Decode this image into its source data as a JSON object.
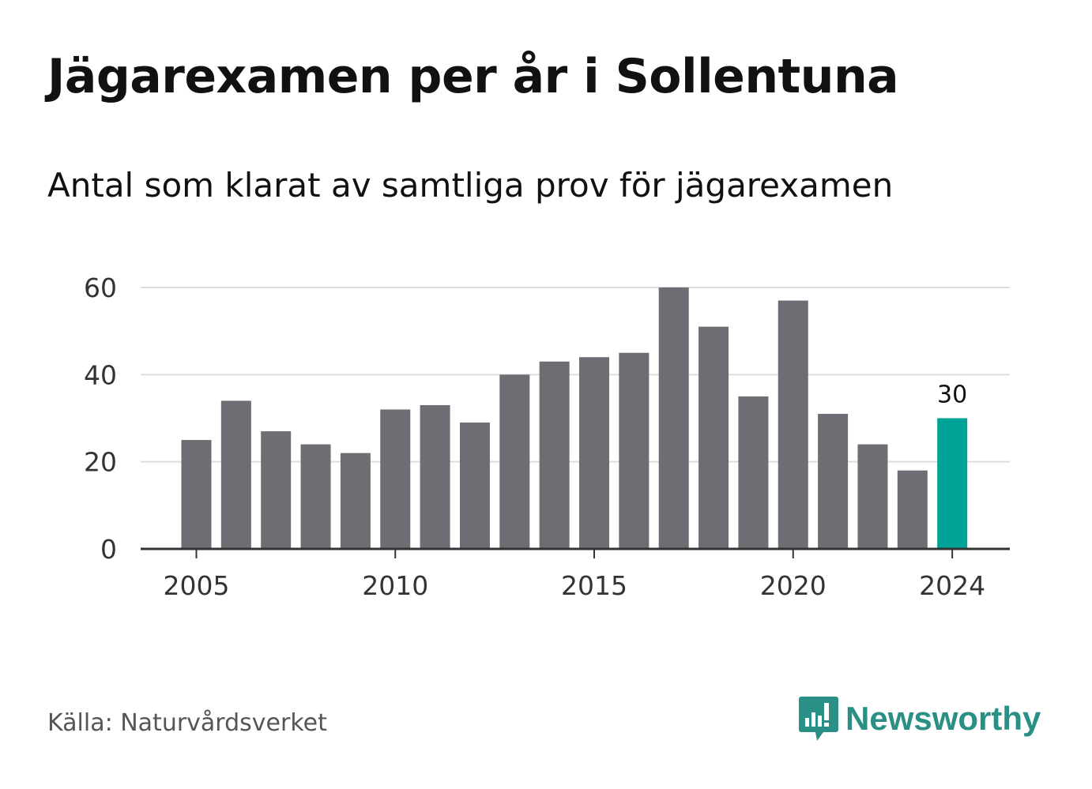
{
  "header": {
    "title": "Jägarexamen per år i Sollentuna",
    "subtitle": "Antal som klarat av samtliga prov för jägarexamen"
  },
  "footer": {
    "source": "Källa: Naturvårdsverket",
    "brand": "Newsworthy",
    "brand_icon": "bar-chart-speech-bubble-icon"
  },
  "colors": {
    "bar": "#6e6d73",
    "highlight": "#00a398",
    "grid": "#dddddd",
    "axis": "#333333",
    "brand": "#2a8f84"
  },
  "chart_data": {
    "type": "bar",
    "x": [
      2005,
      2006,
      2007,
      2008,
      2009,
      2010,
      2011,
      2012,
      2013,
      2014,
      2015,
      2016,
      2017,
      2018,
      2019,
      2020,
      2021,
      2022,
      2023,
      2024
    ],
    "values": [
      25,
      34,
      27,
      24,
      22,
      32,
      33,
      29,
      40,
      43,
      44,
      45,
      60,
      51,
      35,
      57,
      31,
      24,
      18,
      30
    ],
    "highlight_x": 2024,
    "highlight_label": "30",
    "xticks": [
      "2005",
      "2010",
      "2015",
      "2020",
      "2024"
    ],
    "yticks": [
      "0",
      "20",
      "40",
      "60"
    ],
    "ylim": [
      0,
      60
    ],
    "grid": true,
    "legend": "none"
  }
}
